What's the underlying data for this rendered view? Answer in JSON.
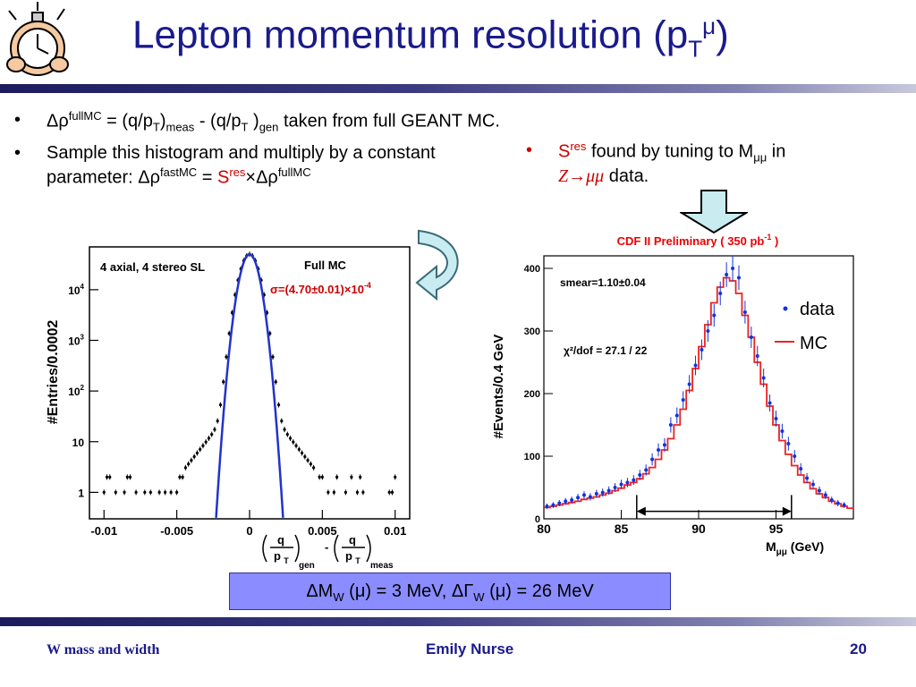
{
  "slide": {
    "title_main": "Lepton momentum resolution (p",
    "title_sub": "T",
    "title_sup": "μ",
    "title_end": ")",
    "logo_icon": "stopwatch-cartoon-icon"
  },
  "left_bullets": [
    {
      "marker": "•",
      "parts": {
        "a": "Δρ",
        "a_sup": "fullMC",
        "b": " = (q/p",
        "b_sub": "T",
        "c": ")",
        "c_sub": "meas",
        "d": " - (q/p",
        "d_sub": "T",
        "e": " )",
        "e_sub": "gen",
        "f": " taken from full GEANT MC."
      }
    },
    {
      "marker": "•",
      "parts": {
        "a": "Sample this histogram and multiply by a constant parameter: ",
        "b": "Δρ",
        "b_sup": "fastMC",
        "c": " = ",
        "d": "S",
        "d_sup": "res",
        "e": "×Δρ",
        "e_sup": "fullMC"
      }
    }
  ],
  "right_bullet": {
    "marker": "•",
    "s": "S",
    "s_sup": "res",
    "text1": " found by tuning to M",
    "m_sub": "μμ",
    "text2": " in",
    "z": "Z→μμ",
    "text3": " data."
  },
  "left_plot": {
    "ylabel": "#Entries/0.0002",
    "label_topleft": "4 axial, 4 stereo SL",
    "label_topright": "Full MC",
    "sigma_label": "σ=(4.70±0.01)×10",
    "sigma_exp": "-4",
    "xlabel_q": "q",
    "xlabel_pt": "p",
    "xlabel_pt_sub": "T",
    "xlabel_gen": "gen",
    "xlabel_minus": "-",
    "xlabel_meas": "meas",
    "yticks": [
      "1",
      "10",
      "10",
      "10",
      "10"
    ],
    "ytick_exps": [
      "",
      "",
      "2",
      "3",
      "4"
    ],
    "xticks": [
      "-0.01",
      "-0.005",
      "0",
      "0.005",
      "0.01"
    ]
  },
  "right_plot": {
    "header": "CDF II Preliminary ( 350 pb",
    "header_exp": "-1",
    "header_end": " )",
    "ylabel": "#Events/0.4 GeV",
    "smear_label": "smear=1.10±0.04",
    "chi2_label": "χ²/dof = 27.1 / 22",
    "legend_data": "data",
    "legend_mc": "MC",
    "xlabel": "M",
    "xlabel_sub": "μμ",
    "xlabel_unit": " (GeV)",
    "yticks": [
      "0",
      "100",
      "200",
      "300",
      "400"
    ],
    "xticks": [
      "80",
      "85",
      "90",
      "95"
    ]
  },
  "result_box": {
    "part1": "ΔM",
    "sub1": "W",
    "part2": " (μ) = 3 MeV,  ΔΓ",
    "sub2": "W",
    "part3": " (μ) = 26 MeV"
  },
  "footer": {
    "left": "W mass and width",
    "center": "Emily Nurse",
    "right": "20"
  },
  "colors": {
    "title": "#1a1a8c",
    "fit_curve": "#2233cc",
    "mc_hist": "#ee2222",
    "data_points": "#1133dd",
    "result_box": "#8a8cff",
    "arrow_fill": "#c8ecf0"
  },
  "chart_data": [
    {
      "type": "scatter",
      "title": "",
      "xlabel": "(q/pT)gen - (q/pT)meas",
      "ylabel": "#Entries/0.0002",
      "y_scale": "log",
      "xlim": [
        -0.011,
        0.011
      ],
      "ylim": [
        0.3,
        70000
      ],
      "series": [
        {
          "name": "Full MC",
          "points": "histogram with narrow core peak near 50000 at 0, broad tails ~10-100 out to ±0.005"
        },
        {
          "name": "",
          "function": "gaussian",
          "sigma": 0.00047,
          "peak": 50000
        }
      ]
    },
    {
      "type": "line",
      "title": "CDF II Preliminary ( 350 pb-1 )",
      "xlabel": "Mμμ (GeV)",
      "ylabel": "#Events/0.4 GeV",
      "xlim": [
        80,
        100
      ],
      "ylim": [
        0,
        420
      ],
      "fit_range": [
        86,
        96
      ],
      "series": [
        {
          "name": "data",
          "x": [
            80.2,
            80.6,
            81,
            81.4,
            81.8,
            82.2,
            82.6,
            83,
            83.4,
            83.8,
            84.2,
            84.6,
            85,
            85.4,
            85.8,
            86.2,
            86.6,
            87,
            87.4,
            87.8,
            88.2,
            88.6,
            89,
            89.4,
            89.8,
            90.2,
            90.6,
            91,
            91.4,
            91.8,
            92.2,
            92.6,
            93,
            93.4,
            93.8,
            94.2,
            94.6,
            95,
            95.4,
            95.8,
            96.2,
            96.6,
            97,
            97.4,
            97.8,
            98.2,
            98.6,
            99,
            99.4
          ],
          "y": [
            20,
            22,
            25,
            28,
            30,
            34,
            38,
            35,
            40,
            42,
            45,
            50,
            55,
            58,
            62,
            70,
            78,
            95,
            110,
            118,
            150,
            165,
            190,
            215,
            245,
            270,
            300,
            325,
            360,
            390,
            400,
            385,
            330,
            290,
            260,
            225,
            185,
            160,
            140,
            120,
            100,
            80,
            65,
            55,
            45,
            38,
            30,
            25,
            22
          ]
        },
        {
          "name": "MC",
          "x": [
            80,
            80.4,
            80.8,
            81.2,
            81.6,
            82,
            82.4,
            82.8,
            83.2,
            83.6,
            84,
            84.4,
            84.8,
            85.2,
            85.6,
            86,
            86.4,
            86.8,
            87.2,
            87.6,
            88,
            88.4,
            88.8,
            89.2,
            89.6,
            90,
            90.4,
            90.8,
            91.2,
            91.6,
            92,
            92.4,
            92.8,
            93.2,
            93.6,
            94,
            94.4,
            94.8,
            95.2,
            95.6,
            96,
            96.4,
            96.8,
            97.2,
            97.6,
            98,
            98.4,
            98.8,
            99.2,
            99.6
          ],
          "y": [
            18,
            20,
            22,
            24,
            26,
            28,
            31,
            33,
            35,
            38,
            41,
            45,
            49,
            54,
            58,
            64,
            72,
            82,
            95,
            110,
            128,
            150,
            175,
            205,
            240,
            275,
            310,
            345,
            370,
            385,
            380,
            360,
            325,
            290,
            250,
            215,
            180,
            150,
            125,
            103,
            85,
            70,
            58,
            48,
            40,
            34,
            28,
            24,
            20,
            17
          ]
        }
      ]
    }
  ]
}
